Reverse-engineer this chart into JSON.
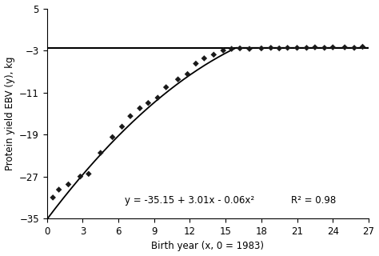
{
  "title": "",
  "xlabel": "Birth year (x, 0 = 1983)",
  "ylabel": "Protein yield EBV (y), kg",
  "equation_text": "y = -35.15 + 3.01x - 0.06x²",
  "r2_text": "R² = 0.98",
  "a": -35.15,
  "b": 3.01,
  "c": -0.06,
  "hline_y": -2.5,
  "xlim": [
    0,
    27
  ],
  "ylim": [
    -35,
    5
  ],
  "yticks": [
    5,
    -3,
    -11,
    -19,
    -27,
    -35
  ],
  "xticks": [
    0,
    3,
    6,
    9,
    12,
    15,
    18,
    21,
    24,
    27
  ],
  "scatter_x": [
    0.5,
    1.0,
    1.8,
    2.8,
    3.5,
    4.5,
    5.5,
    6.3,
    7.0,
    7.8,
    8.5,
    9.3,
    10.0,
    11.0,
    11.8,
    12.5,
    13.2,
    14.0,
    14.8,
    15.5,
    16.2,
    17.0,
    18.0,
    18.8,
    19.5,
    20.2,
    21.0,
    21.8,
    22.5,
    23.3,
    24.0,
    25.0,
    25.8,
    26.5
  ],
  "scatter_y": [
    -31.0,
    -29.5,
    -28.5,
    -27.0,
    -26.5,
    -22.5,
    -19.5,
    -17.5,
    -15.5,
    -14.0,
    -13.0,
    -12.0,
    -10.0,
    -8.5,
    -7.5,
    -5.5,
    -4.5,
    -3.8,
    -3.0,
    -2.7,
    -2.6,
    -2.7,
    -2.6,
    -2.5,
    -2.6,
    -2.5,
    -2.5,
    -2.5,
    -2.4,
    -2.5,
    -2.4,
    -2.4,
    -2.5,
    -2.3
  ],
  "curve_color": "#000000",
  "scatter_color": "#1a1a1a",
  "hline_color": "#000000",
  "bg_color": "#ffffff",
  "fontsize_label": 8.5,
  "fontsize_tick": 8.5,
  "fontsize_annotation": 8.5
}
